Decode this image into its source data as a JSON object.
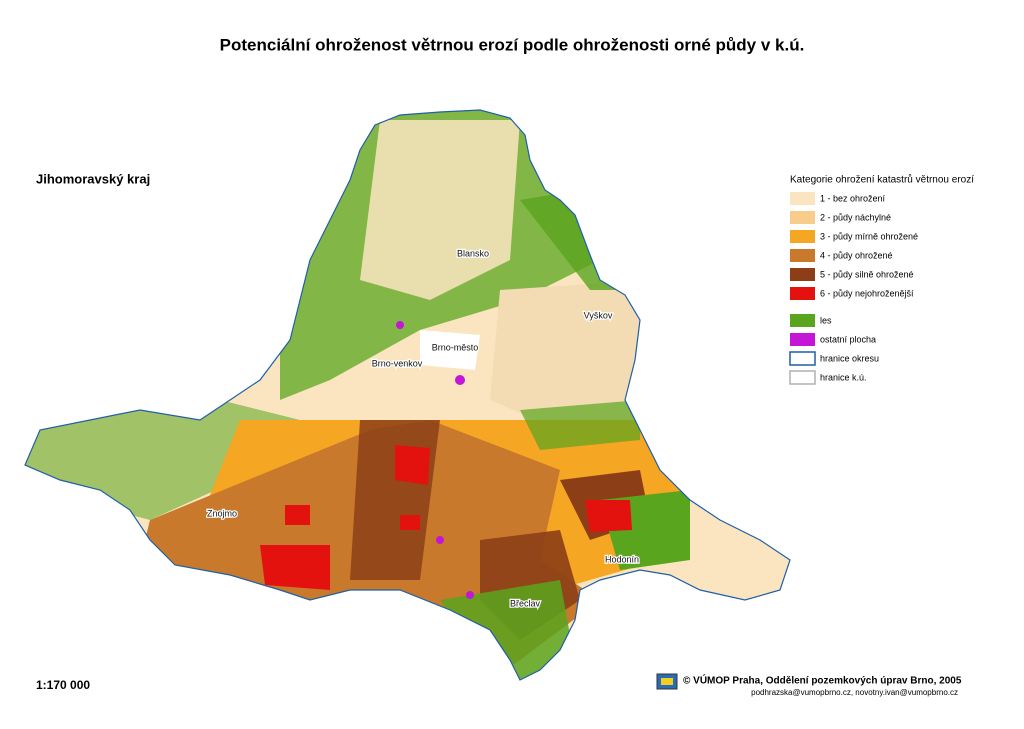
{
  "title": "Potenciální ohroženost větrnou erozí podle ohroženosti orné půdy v k.ú.",
  "region": "Jihomoravský kraj",
  "legend": {
    "title": "Kategorie ohrožení katastrů větrnou erozí",
    "items": [
      {
        "label": "1 - bez ohrožení",
        "color": "#fbe5c0"
      },
      {
        "label": "2 - půdy náchylné",
        "color": "#f8cc8a"
      },
      {
        "label": "3 - půdy mírně ohrožené",
        "color": "#f5a623"
      },
      {
        "label": "4 - půdy ohrožené",
        "color": "#c9792c"
      },
      {
        "label": "5 - půdy silně ohrožené",
        "color": "#8c3f16"
      },
      {
        "label": "6 - půdy nejohroženější",
        "color": "#e3120f"
      },
      {
        "label": "les",
        "color": "#5aa51e"
      },
      {
        "label": "ostatní plocha",
        "color": "#c316d6"
      },
      {
        "label": "hranice okresu",
        "color": "#ffffff",
        "border": "#1f5fa8"
      },
      {
        "label": "hranice k.ú.",
        "color": "#ffffff",
        "border": "#b0b0b0"
      }
    ]
  },
  "districts": [
    "Blansko",
    "Vyškov",
    "Brno-město",
    "Brno-venkov",
    "Znojmo",
    "Hodonín",
    "Břeclav"
  ],
  "scale": "1:170 000",
  "credit": "© VÚMOP Praha, Oddělení pozemkových úprav Brno, 2005",
  "contact": "podhrazska@vumopbrno.cz, novotny.ivan@vumopbrno.cz"
}
